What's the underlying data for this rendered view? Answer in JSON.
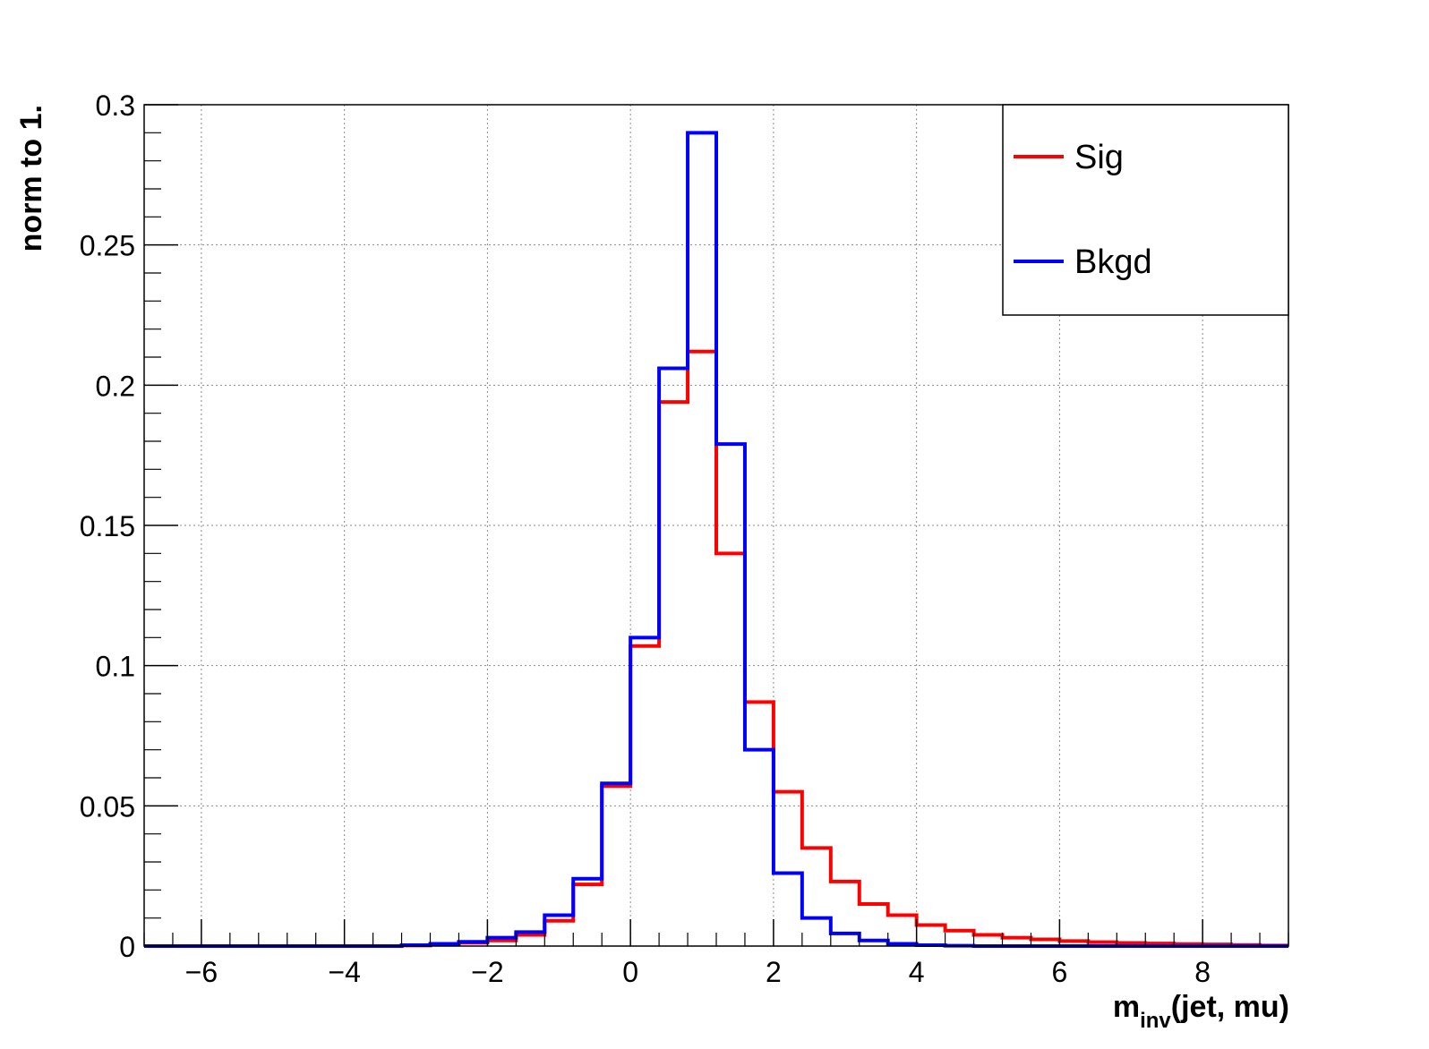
{
  "chart_data": {
    "type": "histogram",
    "title": "",
    "xlabel": {
      "main": "m",
      "subscript": "inv",
      "suffix": "(jet, mu)"
    },
    "ylabel": "norm to 1.",
    "xlim": [
      -6.8,
      9.2
    ],
    "ylim": [
      0,
      0.3
    ],
    "grid": true,
    "legend_position": "top-right",
    "x_ticks": [
      -6,
      -4,
      -2,
      0,
      2,
      4,
      6,
      8
    ],
    "x_tick_labels": [
      "−6",
      "−4",
      "−2",
      "0",
      "2",
      "4",
      "6",
      "8"
    ],
    "y_ticks": [
      0,
      0.05,
      0.1,
      0.15,
      0.2,
      0.25,
      0.3
    ],
    "y_tick_labels": [
      "0",
      "0.05",
      "0.1",
      "0.15",
      "0.2",
      "0.25",
      "0.3"
    ],
    "bin_edges": [
      -6.8,
      -6.4,
      -6.0,
      -5.6,
      -5.2,
      -4.8,
      -4.4,
      -4.0,
      -3.6,
      -3.2,
      -2.8,
      -2.4,
      -2.0,
      -1.6,
      -1.2,
      -0.8,
      -0.4,
      0.0,
      0.4,
      0.8,
      1.2,
      1.6,
      2.0,
      2.4,
      2.8,
      3.2,
      3.6,
      4.0,
      4.4,
      4.8,
      5.2,
      5.6,
      6.0,
      6.4,
      6.8,
      7.2,
      7.6,
      8.0,
      8.4,
      8.8,
      9.2
    ],
    "series": [
      {
        "name": "Sig",
        "color": "#ff0000",
        "values": [
          0,
          0,
          0,
          0,
          0,
          0,
          0,
          0,
          0,
          0.0002,
          0.0005,
          0.0012,
          0.002,
          0.004,
          0.009,
          0.022,
          0.057,
          0.107,
          0.194,
          0.212,
          0.14,
          0.087,
          0.055,
          0.035,
          0.023,
          0.015,
          0.011,
          0.0075,
          0.0055,
          0.004,
          0.003,
          0.0024,
          0.0018,
          0.0014,
          0.0011,
          0.0009,
          0.0007,
          0.0006,
          0.0004,
          0.0002
        ]
      },
      {
        "name": "Bkgd",
        "color": "#0000ff",
        "values": [
          0,
          0,
          0,
          0,
          0,
          0,
          0,
          0,
          0,
          0.0003,
          0.0008,
          0.0015,
          0.003,
          0.005,
          0.011,
          0.024,
          0.058,
          0.11,
          0.206,
          0.29,
          0.179,
          0.07,
          0.026,
          0.01,
          0.0045,
          0.002,
          0.0008,
          0.0003,
          0.0001,
          0,
          0,
          0,
          0,
          0,
          0,
          0,
          0,
          0,
          0,
          0
        ]
      }
    ]
  }
}
